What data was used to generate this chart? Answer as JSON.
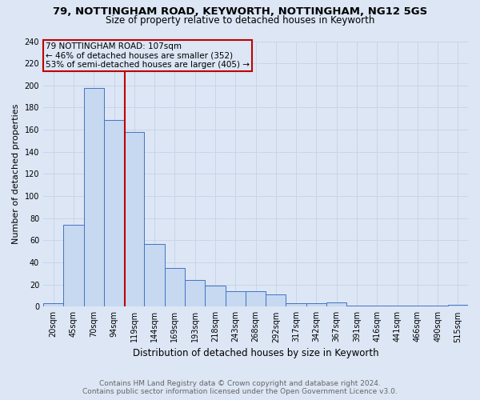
{
  "title1": "79, NOTTINGHAM ROAD, KEYWORTH, NOTTINGHAM, NG12 5GS",
  "title2": "Size of property relative to detached houses in Keyworth",
  "xlabel": "Distribution of detached houses by size in Keyworth",
  "ylabel": "Number of detached properties",
  "footer1": "Contains HM Land Registry data © Crown copyright and database right 2024.",
  "footer2": "Contains public sector information licensed under the Open Government Licence v3.0.",
  "categories": [
    "20sqm",
    "45sqm",
    "70sqm",
    "94sqm",
    "119sqm",
    "144sqm",
    "169sqm",
    "193sqm",
    "218sqm",
    "243sqm",
    "268sqm",
    "292sqm",
    "317sqm",
    "342sqm",
    "367sqm",
    "391sqm",
    "416sqm",
    "441sqm",
    "466sqm",
    "490sqm",
    "515sqm"
  ],
  "values": [
    3,
    74,
    198,
    169,
    158,
    57,
    35,
    24,
    19,
    14,
    14,
    11,
    3,
    3,
    4,
    1,
    1,
    1,
    1,
    1,
    2
  ],
  "bar_color": "#c6d9f0",
  "bar_edge_color": "#4472c4",
  "vline_x": 3.52,
  "vline_color": "#c00000",
  "annotation_lines": [
    "79 NOTTINGHAM ROAD: 107sqm",
    "← 46% of detached houses are smaller (352)",
    "53% of semi-detached houses are larger (405) →"
  ],
  "annotation_box_color": "#c00000",
  "ylim": [
    0,
    240
  ],
  "yticks": [
    0,
    20,
    40,
    60,
    80,
    100,
    120,
    140,
    160,
    180,
    200,
    220,
    240
  ],
  "grid_color": "#c8d4e8",
  "bg_color": "#dce6f5",
  "title1_fontsize": 9.5,
  "title2_fontsize": 8.5,
  "xlabel_fontsize": 8.5,
  "ylabel_fontsize": 8.0,
  "tick_fontsize": 7.0,
  "footer_fontsize": 6.5,
  "ann_fontsize": 7.5
}
